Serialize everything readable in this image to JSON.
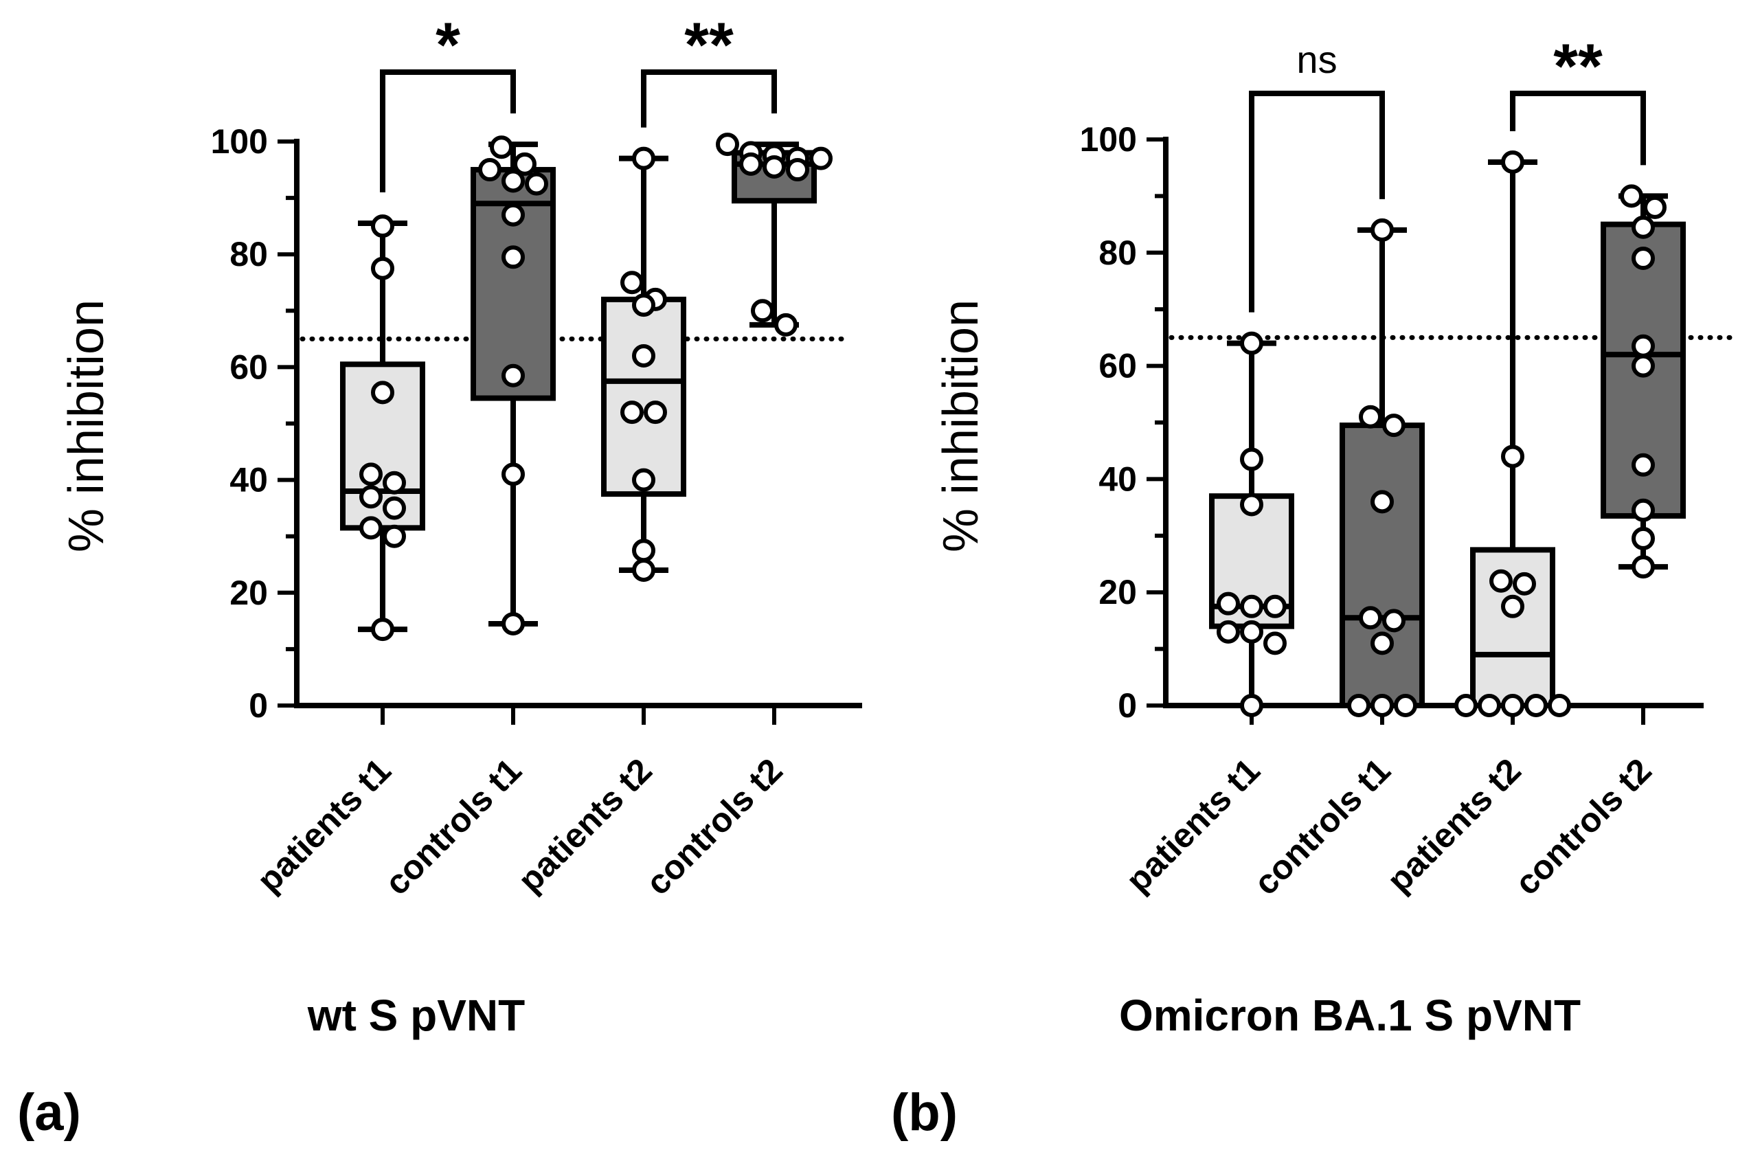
{
  "figure": {
    "ylabel": "% inhibition",
    "categories": [
      "patients t1",
      "controls t1",
      "patients t2",
      "controls t2"
    ],
    "colors": {
      "light_box": "#e4e4e4",
      "dark_box": "#6b6b6b",
      "ink": "#000000"
    }
  },
  "chart_data": [
    {
      "type": "box",
      "panel_label": "(a)",
      "title": "wt S pVNT",
      "ylabel": "% inhibition",
      "ylim": [
        0,
        100
      ],
      "yticks": [
        0,
        20,
        40,
        60,
        80,
        100
      ],
      "threshold": 65,
      "categories": [
        "patients t1",
        "controls t1",
        "patients t2",
        "controls t2"
      ],
      "boxes": [
        {
          "name": "patients t1",
          "fill": "light",
          "min": 13.5,
          "q1": 31.5,
          "median": 38,
          "q3": 60.5,
          "max": 85.5,
          "points": [
            85,
            77.5,
            55.5,
            41,
            39.5,
            37,
            35,
            31.5,
            30,
            13.5
          ]
        },
        {
          "name": "controls t1",
          "fill": "dark",
          "min": 14.5,
          "q1": 54.5,
          "median": 89,
          "q3": 95,
          "max": 99.5,
          "points": [
            99,
            96,
            95,
            93,
            92.5,
            87,
            79.5,
            58.5,
            41,
            14.5
          ]
        },
        {
          "name": "patients t2",
          "fill": "light",
          "min": 24,
          "q1": 37.5,
          "median": 57.5,
          "q3": 72,
          "max": 97,
          "points": [
            97,
            75,
            72,
            71,
            62,
            52,
            52,
            40,
            27.5,
            24
          ]
        },
        {
          "name": "controls t2",
          "fill": "dark",
          "min": 67.5,
          "q1": 89.5,
          "median": 96,
          "q3": 98,
          "max": 99.5,
          "points": [
            99.5,
            98,
            97.5,
            97,
            97,
            96,
            95.5,
            95,
            70,
            67.5
          ]
        }
      ],
      "comparisons": [
        {
          "from": "patients t1",
          "to": "controls t1",
          "label": "*"
        },
        {
          "from": "patients t2",
          "to": "controls t2",
          "label": "**"
        }
      ]
    },
    {
      "type": "box",
      "panel_label": "(b)",
      "title": "Omicron BA.1 S pVNT",
      "ylabel": "% inhibition",
      "ylim": [
        0,
        100
      ],
      "yticks": [
        0,
        20,
        40,
        60,
        80,
        100
      ],
      "threshold": 65,
      "categories": [
        "patients t1",
        "controls t1",
        "patients t2",
        "controls t2"
      ],
      "boxes": [
        {
          "name": "patients t1",
          "fill": "light",
          "min": 0,
          "q1": 14,
          "median": 17.5,
          "q3": 37,
          "max": 64,
          "points": [
            64,
            43.5,
            35.5,
            18,
            17.5,
            17.5,
            13,
            13,
            11,
            0
          ]
        },
        {
          "name": "controls t1",
          "fill": "dark",
          "min": 0,
          "q1": 0,
          "median": 15.5,
          "q3": 49.5,
          "max": 84,
          "points": [
            84,
            51,
            49.5,
            36,
            15.5,
            15,
            11,
            0,
            0,
            0
          ]
        },
        {
          "name": "patients t2",
          "fill": "light",
          "min": 0,
          "q1": 0,
          "median": 9,
          "q3": 27.5,
          "max": 96,
          "points": [
            96,
            44,
            22,
            21.5,
            17.5,
            0,
            0,
            0,
            0,
            0
          ]
        },
        {
          "name": "controls t2",
          "fill": "dark",
          "min": 24.5,
          "q1": 33.5,
          "median": 62,
          "q3": 85,
          "max": 90,
          "points": [
            90,
            88,
            84.5,
            79,
            63.5,
            60,
            42.5,
            34.5,
            29.5,
            24.5
          ]
        }
      ],
      "comparisons": [
        {
          "from": "patients t1",
          "to": "controls t1",
          "label": "ns"
        },
        {
          "from": "patients t2",
          "to": "controls t2",
          "label": "**"
        }
      ]
    }
  ]
}
